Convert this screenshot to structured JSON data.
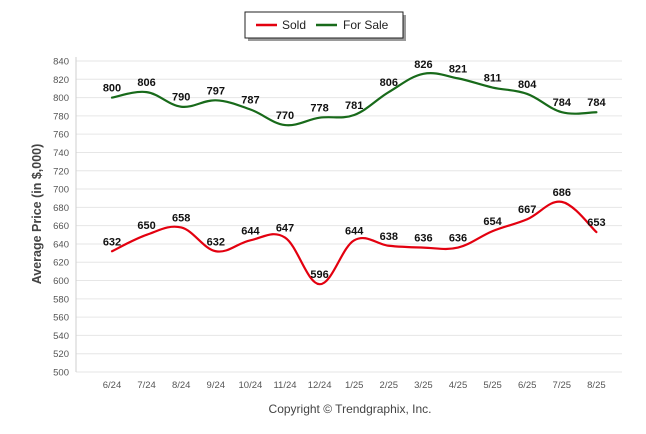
{
  "chart_data": {
    "type": "line",
    "title": "",
    "xlabel": "",
    "ylabel": "Average Price (in $,000)",
    "categories": [
      "6/24",
      "7/24",
      "8/24",
      "9/24",
      "10/24",
      "11/24",
      "12/24",
      "1/25",
      "2/25",
      "3/25",
      "4/25",
      "5/25",
      "6/25",
      "7/25",
      "8/25"
    ],
    "series": [
      {
        "name": "Sold",
        "color": "#e3000f",
        "values": [
          632,
          650,
          658,
          632,
          644,
          647,
          596,
          644,
          638,
          636,
          636,
          654,
          667,
          686,
          653
        ]
      },
      {
        "name": "For Sale",
        "color": "#186a1a",
        "values": [
          800,
          806,
          790,
          797,
          787,
          770,
          778,
          781,
          806,
          826,
          821,
          811,
          804,
          784,
          784
        ]
      }
    ],
    "ylim": [
      500,
      840
    ],
    "yticks": [
      500,
      520,
      540,
      560,
      580,
      600,
      620,
      640,
      660,
      680,
      700,
      720,
      740,
      760,
      780,
      800,
      820,
      840
    ],
    "grid": true,
    "legend_position": "top-center",
    "credit": "Copyright © Trendgraphix, Inc."
  }
}
